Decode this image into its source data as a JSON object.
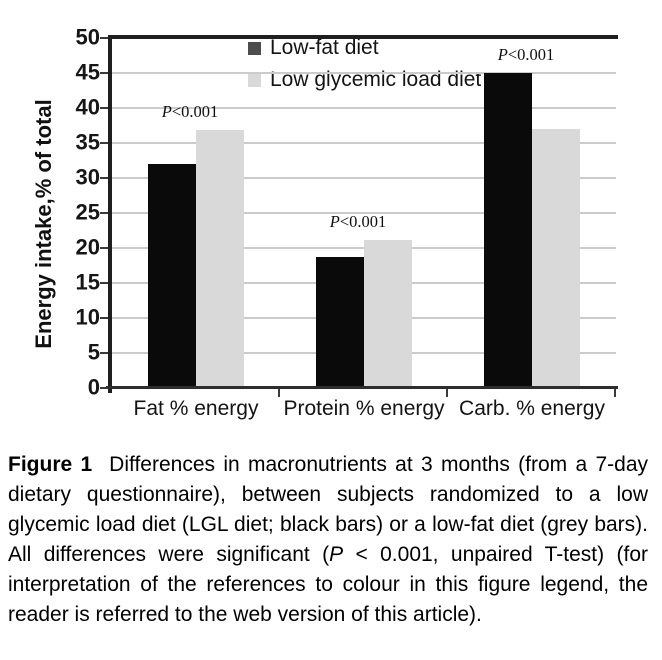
{
  "figure": {
    "caption": {
      "label": "Figure 1",
      "body_before_p": "Differences in macronutrients at 3 months (from a 7-day dietary questionnaire), between subjects randomized to a low glycemic load diet (LGL diet; black bars) or a low-fat diet (grey bars). All differences were significant (",
      "p_symbol": "P",
      "body_after_p": " < 0.001, unpaired T-test) (for interpretation of the references to colour in this figure legend, the reader is referred to the web version of this article)."
    }
  },
  "chart_data": {
    "type": "bar",
    "title": "",
    "xlabel": "",
    "ylabel": "Energy intake,% of total",
    "categories": [
      "Fat % energy",
      "Protein % energy",
      "Carb. % energy"
    ],
    "series": [
      {
        "name": "Low-fat diet",
        "values": [
          32,
          18.7,
          45
        ],
        "bar_color": "#0a0a0a",
        "legend_color": "#4d4d4d"
      },
      {
        "name": "Low glycemic load diet",
        "values": [
          36.9,
          21.2,
          37
        ],
        "bar_color": "#d9d9d9",
        "legend_color": "#d9d9d9"
      }
    ],
    "ylim": [
      0,
      50
    ],
    "yticks": [
      0,
      5,
      10,
      15,
      20,
      25,
      30,
      35,
      40,
      45,
      50
    ],
    "grid": true,
    "legend_position": "top-center-inside",
    "annotations": [
      {
        "group": "Fat % energy",
        "text_italic": "P",
        "text_rest": "<0.001"
      },
      {
        "group": "Protein % energy",
        "text_italic": "P",
        "text_rest": "<0.001"
      },
      {
        "group": "Carb. % energy",
        "text_italic": "P",
        "text_rest": "<0.001"
      }
    ],
    "axis_color": "#1f1f1f",
    "grid_color": "#cbcbcb"
  }
}
